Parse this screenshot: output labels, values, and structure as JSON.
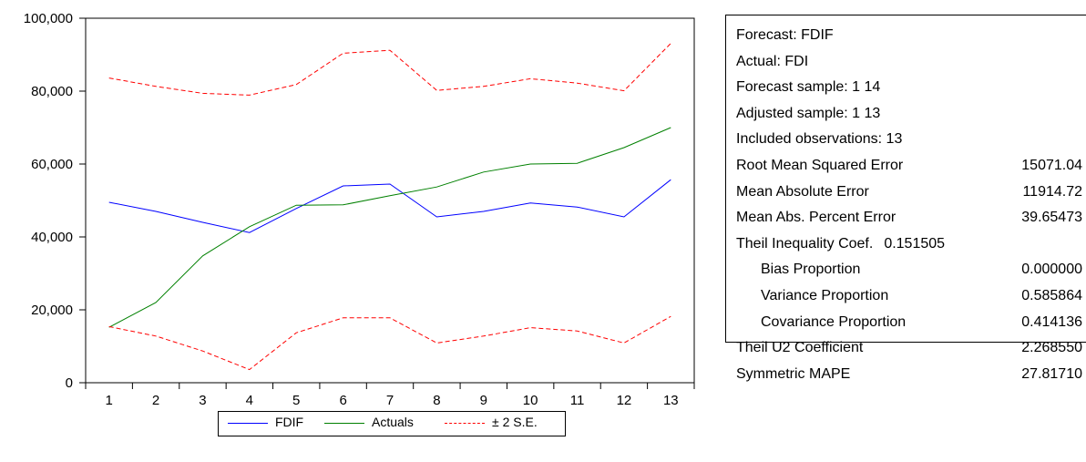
{
  "chart_data": {
    "type": "line",
    "x": [
      1,
      2,
      3,
      4,
      5,
      6,
      7,
      8,
      9,
      10,
      11,
      12,
      13
    ],
    "ylim": [
      0,
      100000
    ],
    "yticks": [
      0,
      20000,
      40000,
      60000,
      80000,
      100000
    ],
    "ytick_labels": [
      "0",
      "20,000",
      "40,000",
      "60,000",
      "80,000",
      "100,000"
    ],
    "grid": false,
    "legend_position": "bottom",
    "series": [
      {
        "name": "FDIF",
        "color": "#0000ff",
        "dash": "solid",
        "values": [
          49500,
          47000,
          44000,
          41200,
          47800,
          54000,
          54500,
          45500,
          47000,
          49300,
          48200,
          45500,
          55700
        ]
      },
      {
        "name": "Actuals",
        "color": "#008000",
        "dash": "solid",
        "values": [
          15200,
          22000,
          34800,
          42800,
          48700,
          48800,
          51300,
          53700,
          57800,
          60000,
          60200,
          64500,
          70000
        ]
      },
      {
        "name": "± 2 S.E.",
        "color": "#ff0000",
        "dash": "dashed",
        "band": "upper",
        "values": [
          83600,
          81300,
          79400,
          78900,
          81800,
          90400,
          91200,
          80200,
          81300,
          83400,
          82200,
          80100,
          93100
        ]
      },
      {
        "name": "± 2 S.E.",
        "color": "#ff0000",
        "dash": "dashed",
        "band": "lower",
        "values": [
          15400,
          12800,
          8700,
          3600,
          13700,
          17800,
          17800,
          10900,
          12800,
          15100,
          14200,
          10900,
          18200
        ]
      }
    ],
    "legend": [
      "FDIF",
      "Actuals",
      "± 2 S.E."
    ]
  },
  "stats": {
    "rows": [
      {
        "label": "Forecast: FDIF",
        "value": ""
      },
      {
        "label": "Actual: FDI",
        "value": ""
      },
      {
        "label": "Forecast sample: 1 14",
        "value": ""
      },
      {
        "label": "Adjusted sample: 1 13",
        "value": ""
      },
      {
        "label": "Included observations: 13",
        "value": ""
      },
      {
        "label": "Root Mean Squared Error",
        "value": "15071.04"
      },
      {
        "label": "Mean Absolute Error",
        "value": "11914.72"
      },
      {
        "label": "Mean Abs. Percent Error",
        "value": "39.65473"
      },
      {
        "label": "Theil Inequality Coef.",
        "value": "0.151505",
        "inline": true
      },
      {
        "label": "Bias Proportion",
        "value": "0.000000",
        "indent": true
      },
      {
        "label": "Variance Proportion",
        "value": "0.585864",
        "indent": true
      },
      {
        "label": "Covariance Proportion",
        "value": "0.414136",
        "indent": true
      },
      {
        "label": "Theil U2 Coefficient",
        "value": "2.268550"
      },
      {
        "label": "Symmetric MAPE",
        "value": "27.81710"
      }
    ]
  }
}
